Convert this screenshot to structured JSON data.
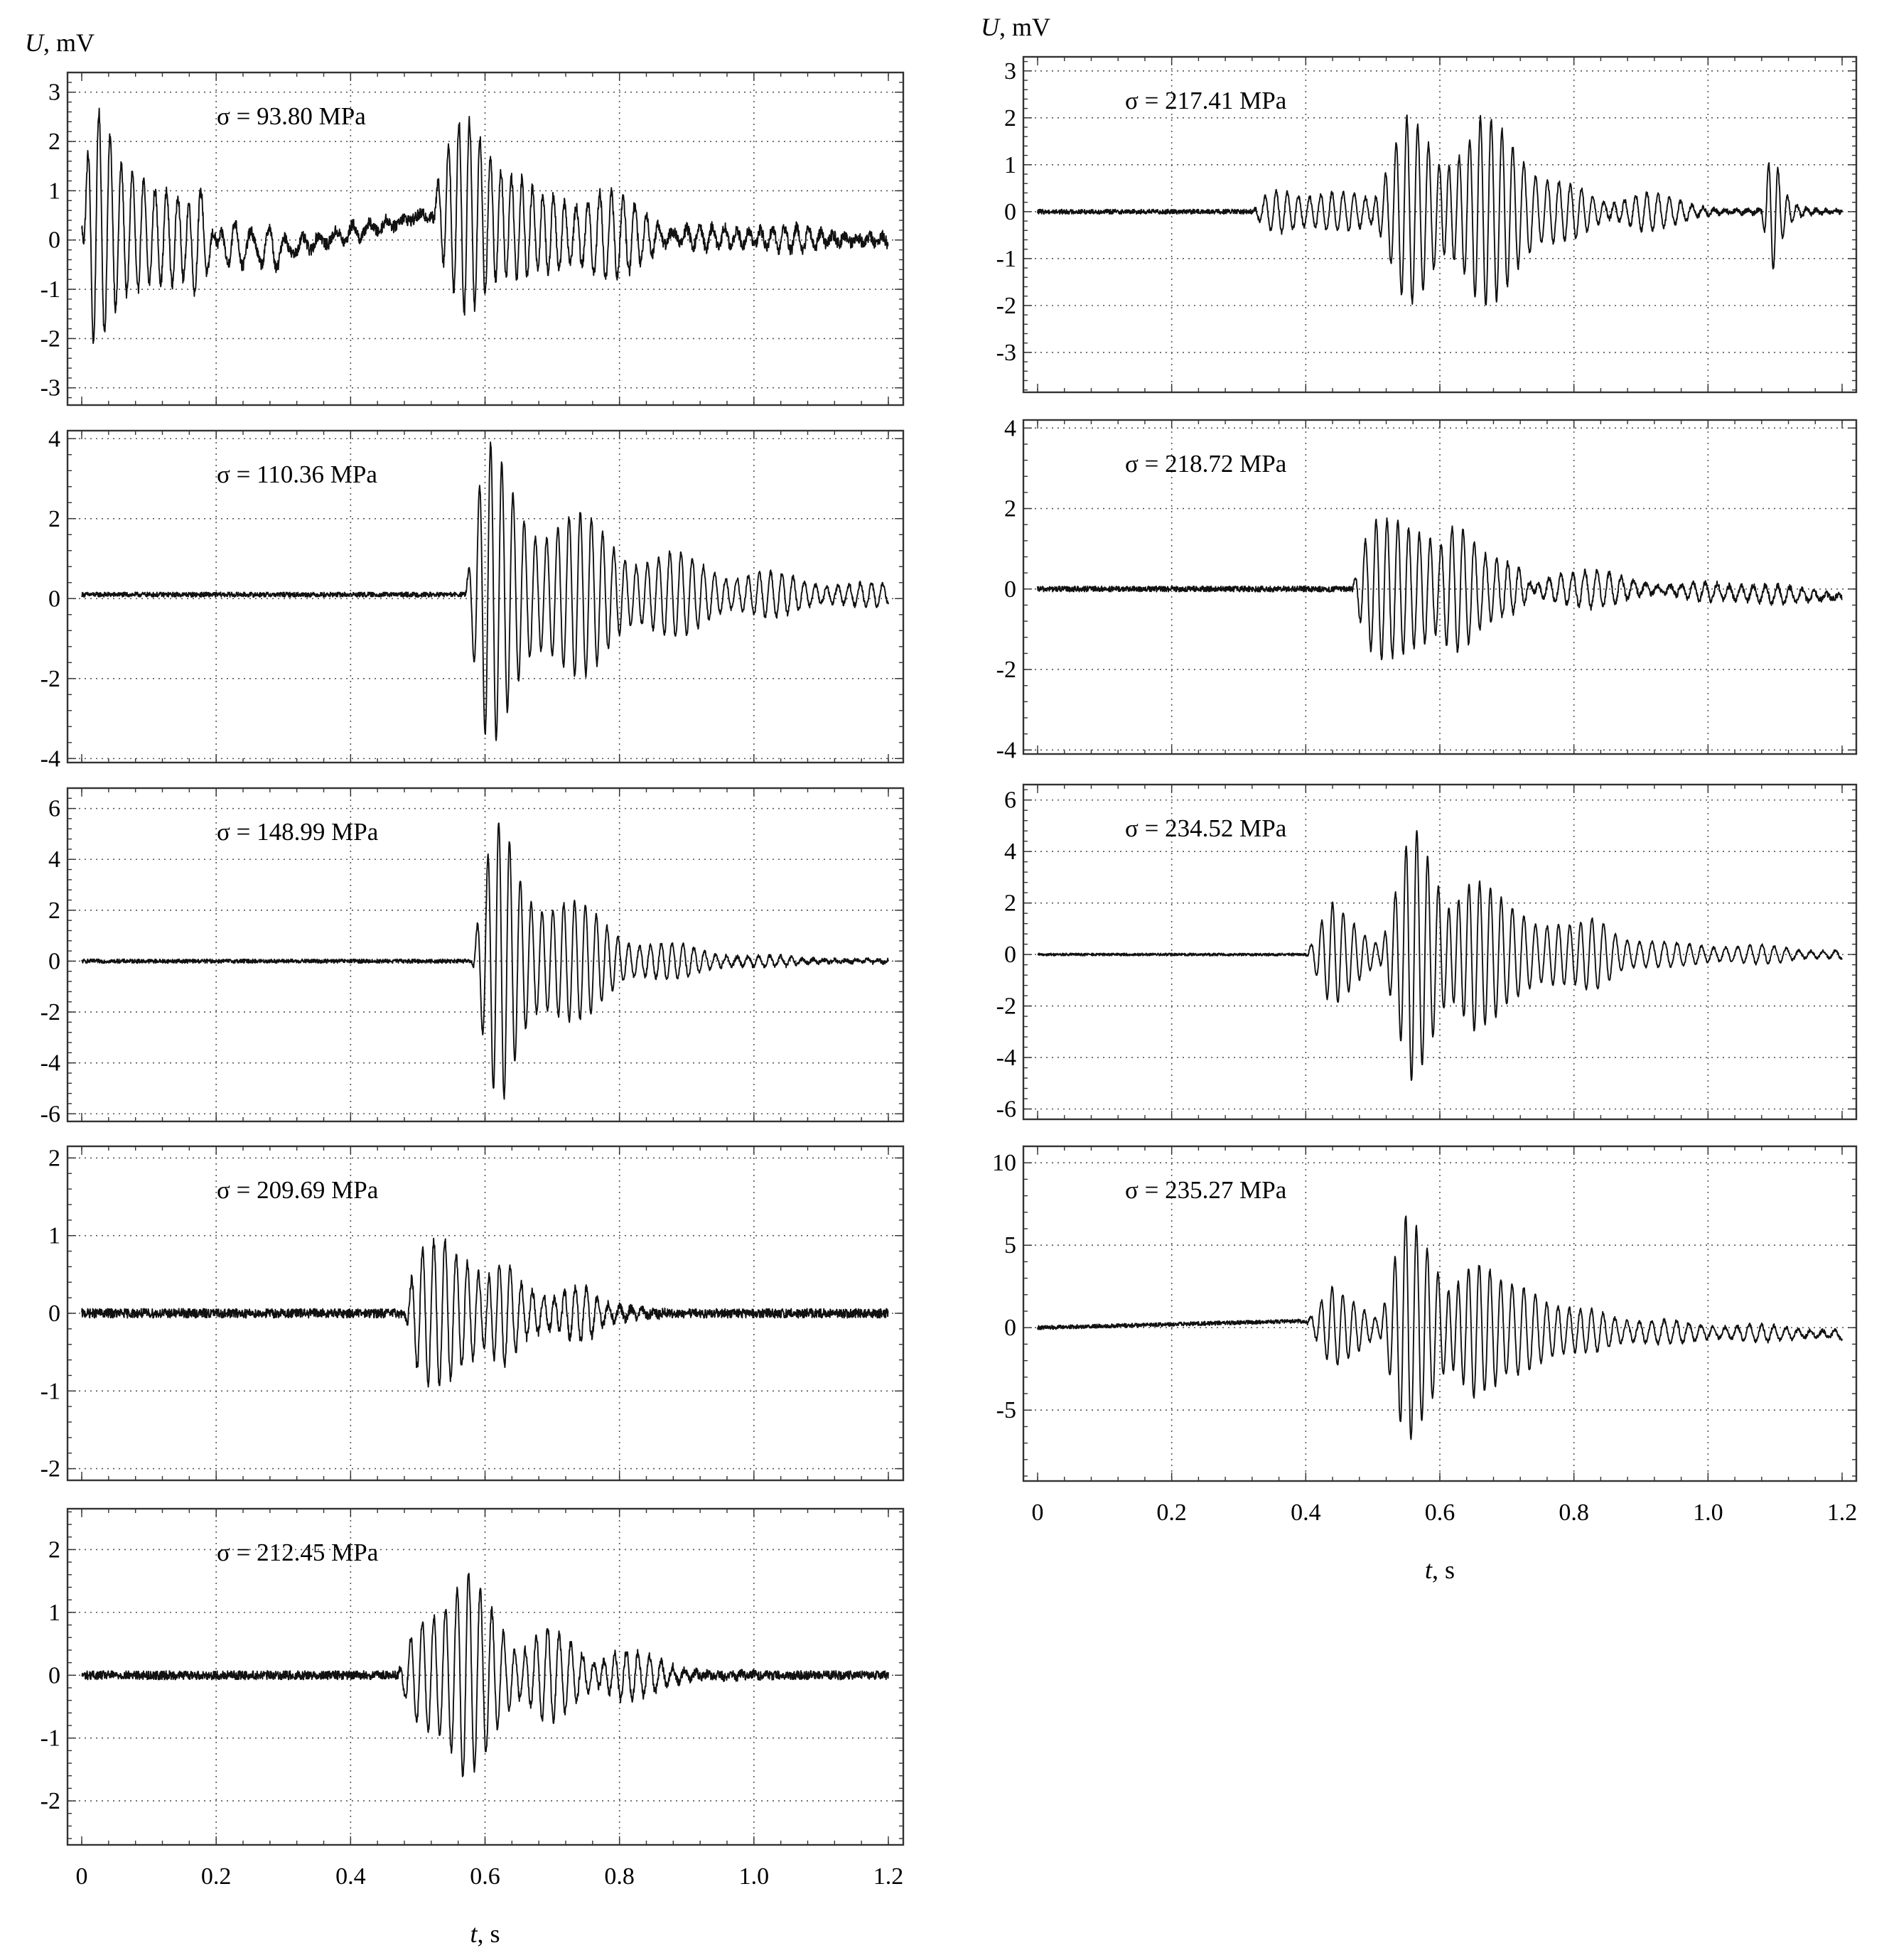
{
  "chart_data": [
    {
      "type": "line",
      "label": "σ = 93.80 MPa",
      "ylabel_symbol": "U",
      "ylabel_unit": ", mV",
      "xlim": [
        0,
        1.2
      ],
      "ylim": [
        -3.35,
        3.4
      ],
      "yticks": [
        3,
        2,
        1,
        0,
        -1,
        -2,
        -3
      ],
      "x_ticks_shown": false,
      "grid": true,
      "trace": {
        "base": 0.0,
        "noise": 0.12,
        "freq": 62,
        "bursts": [
          {
            "t0": 0.0,
            "tp": 0.02,
            "amp": 2.6,
            "decay": 0.07,
            "f": 60
          },
          {
            "t0": 0.06,
            "tp": 0.09,
            "amp": 1.1,
            "decay": 0.09,
            "f": 58
          },
          {
            "t0": 0.15,
            "tp": 0.18,
            "amp": 0.7,
            "decay": 0.15,
            "f": 40
          },
          {
            "t0": 0.52,
            "tp": 0.6,
            "amp": 2.9,
            "decay": 0.06,
            "f": 64
          },
          {
            "t0": 0.68,
            "tp": 0.77,
            "amp": 1.2,
            "decay": 0.1,
            "f": 58
          },
          {
            "t0": 0.84,
            "tp": 0.9,
            "amp": 0.45,
            "decay": 0.18,
            "f": 55
          }
        ],
        "drift": [
          [
            0,
            0.3
          ],
          [
            0.15,
            0.0
          ],
          [
            0.3,
            -0.2
          ],
          [
            0.45,
            0.3
          ],
          [
            0.54,
            0.6
          ],
          [
            0.7,
            0.1
          ],
          [
            1.2,
            0.0
          ]
        ]
      }
    },
    {
      "type": "line",
      "label": "σ = 110.36 MPa",
      "xlim": [
        0,
        1.2
      ],
      "ylim": [
        -4.1,
        4.2
      ],
      "yticks": [
        4,
        2,
        0,
        -2,
        -4
      ],
      "x_ticks_shown": false,
      "grid": true,
      "trace": {
        "base": 0.1,
        "noise": 0.06,
        "freq": 62,
        "bursts": [
          {
            "t0": 0.57,
            "tp": 0.61,
            "amp": 3.8,
            "decay": 0.22,
            "f": 60
          }
        ],
        "drift": []
      }
    },
    {
      "type": "line",
      "label": "σ = 148.99 MPa",
      "xlim": [
        0,
        1.2
      ],
      "ylim": [
        -6.3,
        6.8
      ],
      "yticks": [
        6,
        4,
        2,
        0,
        -2,
        -4,
        -6
      ],
      "x_ticks_shown": false,
      "grid": true,
      "trace": {
        "base": 0.0,
        "noise": 0.08,
        "freq": 62,
        "bursts": [
          {
            "t0": 0.58,
            "tp": 0.63,
            "amp": 6.0,
            "decay": 0.12,
            "f": 62
          }
        ],
        "drift": []
      }
    },
    {
      "type": "line",
      "label": "σ = 209.69 MPa",
      "xlim": [
        0,
        1.2
      ],
      "ylim": [
        -2.15,
        2.15
      ],
      "yticks": [
        2,
        1,
        0,
        -1,
        -2
      ],
      "x_ticks_shown": false,
      "grid": true,
      "trace": {
        "base": 0.0,
        "noise": 0.06,
        "freq": 62,
        "bursts": [
          {
            "t0": 0.48,
            "tp": 0.54,
            "amp": 1.9,
            "decay": 0.04,
            "f": 60
          },
          {
            "t0": 0.6,
            "tp": 0.64,
            "amp": 1.0,
            "decay": 0.04,
            "f": 60
          },
          {
            "t0": 0.7,
            "tp": 0.76,
            "amp": 0.5,
            "decay": 0.03,
            "f": 60
          }
        ],
        "drift": []
      }
    },
    {
      "type": "line",
      "label": "σ = 212.45 MPa",
      "xlim": [
        0,
        1.2
      ],
      "ylim": [
        -2.7,
        2.65
      ],
      "yticks": [
        2,
        1,
        0,
        -1,
        -2
      ],
      "x_ticks_shown": true,
      "xticks": [
        "0",
        "0.2",
        "0.4",
        "0.6",
        "0.8",
        "1.0",
        "1.2"
      ],
      "xlabel_symbol": "t",
      "xlabel_unit": ", s",
      "grid": true,
      "trace": {
        "base": 0.0,
        "noise": 0.07,
        "freq": 62,
        "bursts": [
          {
            "t0": 0.47,
            "tp": 0.57,
            "amp": 2.3,
            "decay": 0.05,
            "f": 58
          },
          {
            "t0": 0.64,
            "tp": 0.69,
            "amp": 1.0,
            "decay": 0.05,
            "f": 58
          },
          {
            "t0": 0.76,
            "tp": 0.8,
            "amp": 0.6,
            "decay": 0.06,
            "f": 58
          }
        ],
        "drift": []
      }
    },
    {
      "type": "line",
      "label": "σ = 217.41 MPa",
      "ylabel_symbol": "U",
      "ylabel_unit": ", mV",
      "xlim": [
        0,
        1.2
      ],
      "ylim": [
        -3.85,
        3.3
      ],
      "yticks": [
        3,
        2,
        1,
        0,
        -1,
        -2,
        -3
      ],
      "x_ticks_shown": false,
      "grid": true,
      "trace": {
        "base": 0.0,
        "noise": 0.05,
        "freq": 62,
        "bursts": [
          {
            "t0": 0.32,
            "tp": 0.38,
            "amp": 0.7,
            "decay": 0.15,
            "f": 60
          },
          {
            "t0": 0.5,
            "tp": 0.55,
            "amp": 2.7,
            "decay": 0.06,
            "f": 62
          },
          {
            "t0": 0.6,
            "tp": 0.66,
            "amp": 3.0,
            "decay": 0.06,
            "f": 62
          },
          {
            "t0": 0.72,
            "tp": 0.77,
            "amp": 1.3,
            "decay": 0.06,
            "f": 60
          },
          {
            "t0": 0.85,
            "tp": 0.9,
            "amp": 0.6,
            "decay": 0.06,
            "f": 60
          },
          {
            "t0": 1.08,
            "tp": 1.1,
            "amp": 1.6,
            "decay": 0.02,
            "f": 70
          }
        ],
        "drift": []
      }
    },
    {
      "type": "line",
      "label": "σ = 218.72 MPa",
      "xlim": [
        0,
        1.2
      ],
      "ylim": [
        -4.1,
        4.2
      ],
      "yticks": [
        4,
        2,
        0,
        -2,
        -4
      ],
      "x_ticks_shown": false,
      "grid": true,
      "trace": {
        "base": 0.0,
        "noise": 0.07,
        "freq": 62,
        "bursts": [
          {
            "t0": 0.47,
            "tp": 0.54,
            "amp": 3.4,
            "decay": 0.05,
            "f": 62
          },
          {
            "t0": 0.6,
            "tp": 0.65,
            "amp": 2.0,
            "decay": 0.05,
            "f": 60
          },
          {
            "t0": 0.72,
            "tp": 0.78,
            "amp": 0.7,
            "decay": 0.12,
            "f": 55
          },
          {
            "t0": 0.95,
            "tp": 1.05,
            "amp": 0.3,
            "decay": 0.15,
            "f": 55
          }
        ],
        "drift": [
          [
            0,
            0.0
          ],
          [
            0.9,
            0.0
          ],
          [
            1.2,
            -0.2
          ]
        ]
      }
    },
    {
      "type": "line",
      "label": "σ = 234.52 MPa",
      "xlim": [
        0,
        1.2
      ],
      "ylim": [
        -6.4,
        6.6
      ],
      "yticks": [
        6,
        4,
        2,
        0,
        -2,
        -4,
        -6
      ],
      "x_ticks_shown": false,
      "grid": true,
      "trace": {
        "base": 0.0,
        "noise": 0.05,
        "freq": 62,
        "bursts": [
          {
            "t0": 0.4,
            "tp": 0.44,
            "amp": 2.3,
            "decay": 0.05,
            "f": 62
          },
          {
            "t0": 0.51,
            "tp": 0.56,
            "amp": 5.8,
            "decay": 0.05,
            "f": 62
          },
          {
            "t0": 0.61,
            "tp": 0.65,
            "amp": 5.0,
            "decay": 0.05,
            "f": 62
          },
          {
            "t0": 0.7,
            "tp": 0.77,
            "amp": 2.2,
            "decay": 0.07,
            "f": 60
          },
          {
            "t0": 0.8,
            "tp": 0.85,
            "amp": 0.9,
            "decay": 0.25,
            "f": 55
          }
        ],
        "drift": []
      }
    },
    {
      "type": "line",
      "label": "σ = 235.27 MPa",
      "xlim": [
        0,
        1.2
      ],
      "ylim": [
        -9.3,
        11.0
      ],
      "yticks": [
        10,
        5,
        0,
        -5
      ],
      "x_ticks_shown": true,
      "xticks": [
        "0",
        "0.2",
        "0.4",
        "0.6",
        "0.8",
        "1.0",
        "1.2"
      ],
      "xlabel_symbol": "t",
      "xlabel_unit": ", s",
      "grid": true,
      "trace": {
        "base": 0.0,
        "noise": 0.12,
        "freq": 62,
        "bursts": [
          {
            "t0": 0.4,
            "tp": 0.44,
            "amp": 2.7,
            "decay": 0.06,
            "f": 62
          },
          {
            "t0": 0.51,
            "tp": 0.55,
            "amp": 9.0,
            "decay": 0.05,
            "f": 62
          },
          {
            "t0": 0.61,
            "tp": 0.65,
            "amp": 7.0,
            "decay": 0.05,
            "f": 62
          },
          {
            "t0": 0.7,
            "tp": 0.75,
            "amp": 3.8,
            "decay": 0.06,
            "f": 60
          },
          {
            "t0": 0.8,
            "tp": 0.88,
            "amp": 1.0,
            "decay": 0.3,
            "f": 55
          }
        ],
        "drift": [
          [
            0,
            0.0
          ],
          [
            0.39,
            0.4
          ],
          [
            0.45,
            0.0
          ],
          [
            1.2,
            -0.4
          ]
        ]
      }
    }
  ]
}
